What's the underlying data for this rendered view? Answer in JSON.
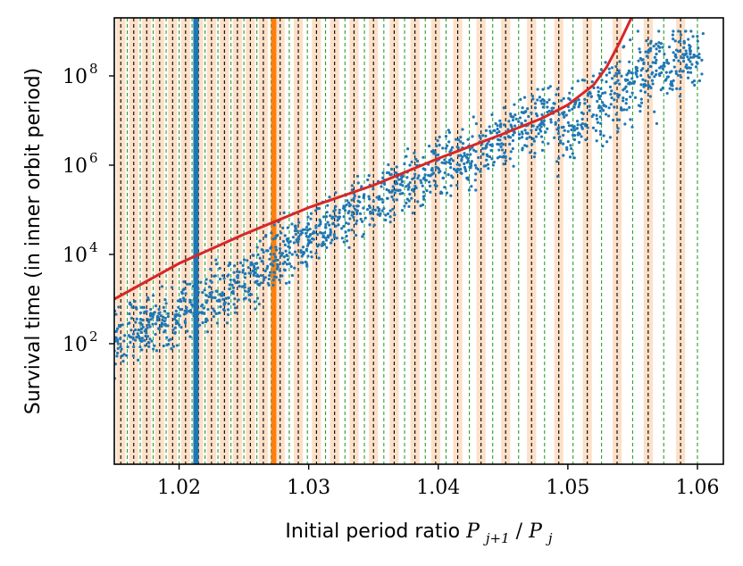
{
  "chart_data": {
    "type": "scatter",
    "xlabel": "Initial period ratio",
    "xlabel_math": {
      "base": "P",
      "sub_num": "j+1",
      "slash": "/",
      "sub_den": "j"
    },
    "ylabel": "Survival time (in inner orbit period)",
    "xscale": "linear",
    "yscale": "log",
    "xlim": [
      1.015,
      1.062
    ],
    "ylim_log10": [
      -0.7,
      9.3
    ],
    "x_ticks": [
      1.02,
      1.03,
      1.04,
      1.05,
      1.06
    ],
    "x_tick_labels": [
      "1.02",
      "1.03",
      "1.04",
      "1.05",
      "1.06"
    ],
    "y_ticks_log10": [
      2,
      4,
      6,
      8
    ],
    "y_tick_labels": [
      {
        "base": "10",
        "exp": "2"
      },
      {
        "base": "10",
        "exp": "4"
      },
      {
        "base": "10",
        "exp": "6"
      },
      {
        "base": "10",
        "exp": "8"
      }
    ],
    "vertical_lines": [
      {
        "name": "highlight-blue",
        "x": 1.0213,
        "color": "#1f77b4"
      },
      {
        "name": "highlight-orange",
        "x": 1.0273,
        "color": "#ff7f0e"
      }
    ],
    "resonance_black_x": [
      1.0155,
      1.0165,
      1.0175,
      1.0185,
      1.0195,
      1.0205,
      1.0215,
      1.0225,
      1.0235,
      1.0245,
      1.0255,
      1.0265,
      1.0278,
      1.0292,
      1.0306,
      1.032,
      1.0335,
      1.035,
      1.0366,
      1.0382,
      1.0398,
      1.0415,
      1.0433,
      1.0452,
      1.0472,
      1.0493,
      1.0515,
      1.0538,
      1.0562,
      1.0587
    ],
    "resonance_green_x": [
      1.015,
      1.016,
      1.017,
      1.018,
      1.019,
      1.02,
      1.021,
      1.022,
      1.023,
      1.024,
      1.025,
      1.026,
      1.0271,
      1.0285,
      1.0299,
      1.0313,
      1.0328,
      1.0343,
      1.0358,
      1.0374,
      1.039,
      1.0406,
      1.0424,
      1.0442,
      1.0462,
      1.0482,
      1.0504,
      1.0526,
      1.055,
      1.0574,
      1.06
    ],
    "band_half_width": 0.00035,
    "band_color": "#fde0c8",
    "series": [
      {
        "name": "simulations",
        "type": "scatter",
        "color": "#1f77b4",
        "trend_log10": [
          [
            1.015,
            2.1
          ],
          [
            1.02,
            2.7
          ],
          [
            1.025,
            3.4
          ],
          [
            1.03,
            4.4
          ],
          [
            1.035,
            5.2
          ],
          [
            1.04,
            5.9
          ],
          [
            1.045,
            6.6
          ],
          [
            1.05,
            7.3
          ],
          [
            1.053,
            7.9
          ],
          [
            1.055,
            8.3
          ],
          [
            1.058,
            8.7
          ],
          [
            1.0605,
            8.8
          ]
        ],
        "spread_log10": 0.55,
        "cap_log10": 9.0,
        "count": 1600
      },
      {
        "name": "analytic-estimate",
        "type": "line",
        "color": "#d62728",
        "points_log10": [
          [
            1.015,
            3.0
          ],
          [
            1.02,
            3.8
          ],
          [
            1.025,
            4.45
          ],
          [
            1.03,
            5.05
          ],
          [
            1.035,
            5.55
          ],
          [
            1.04,
            6.15
          ],
          [
            1.045,
            6.7
          ],
          [
            1.048,
            7.05
          ],
          [
            1.05,
            7.35
          ],
          [
            1.052,
            7.8
          ],
          [
            1.053,
            8.2
          ],
          [
            1.054,
            8.75
          ],
          [
            1.0549,
            9.3
          ]
        ]
      }
    ]
  }
}
